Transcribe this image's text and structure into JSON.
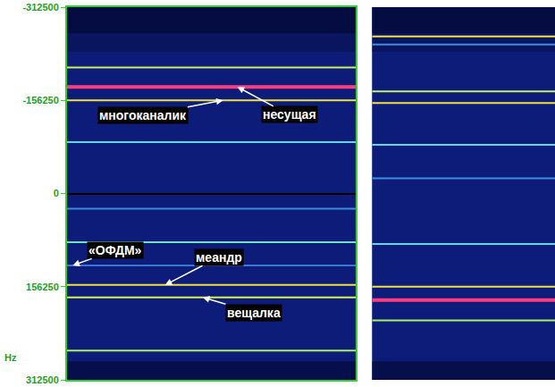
{
  "chart_data": [
    {
      "type": "line",
      "ylim": [
        -312500,
        312500
      ],
      "yticks": [
        -312500,
        -156250,
        0,
        156250,
        312500
      ],
      "y_label": "Hz",
      "tick_labels": "y",
      "grid": false,
      "lines": [
        {
          "y": -211300,
          "color": "#c8f060"
        },
        {
          "y": -178600,
          "color": "#ff3c7c",
          "label": "несущая"
        },
        {
          "y": -156250,
          "color": "#f0e040",
          "label": "многоканалик"
        },
        {
          "y": -86300,
          "color": "#60d8e8"
        },
        {
          "y": 25300,
          "color": "#3a8ee0"
        },
        {
          "y": 81800,
          "color": "#70e0c0"
        },
        {
          "y": 120500,
          "color": "#3a78d8",
          "label": "«ОФДМ»"
        },
        {
          "y": 153300,
          "color": "#f0e040",
          "label": "меандр"
        },
        {
          "y": 174100,
          "color": "#d8f050",
          "label": "вещалка"
        },
        {
          "y": 263400,
          "color": "#a8f060"
        }
      ]
    },
    {
      "type": "line",
      "ylim": [
        -312500,
        312500
      ],
      "yticks": [
        -312500,
        -156250,
        0,
        156250,
        312500
      ],
      "tick_labels": false,
      "grid": false,
      "lines": [
        {
          "y": -263400,
          "color": "#f0e040"
        },
        {
          "y": -250000,
          "color": "#3a8ee0"
        },
        {
          "y": -171100,
          "color": "#c8f060"
        },
        {
          "y": -151800,
          "color": "#f0e040"
        },
        {
          "y": -81800,
          "color": "#60d8e8"
        },
        {
          "y": -25300,
          "color": "#3a8ee0"
        },
        {
          "y": 84800,
          "color": "#60d8e8"
        },
        {
          "y": 156250,
          "color": "#f0e040"
        },
        {
          "y": 178600,
          "color": "#ff3c7c"
        },
        {
          "y": 212800,
          "color": "#a8f060"
        }
      ]
    }
  ]
}
